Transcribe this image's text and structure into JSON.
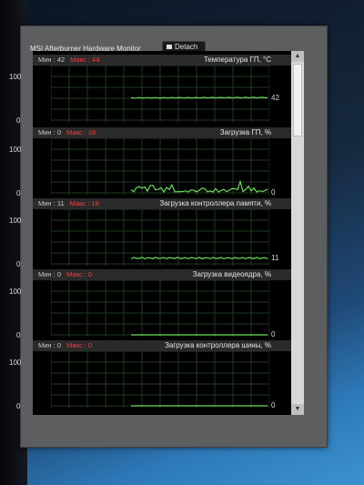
{
  "window": {
    "title": "MSI Afterburner Hardware Monitor",
    "detach_label": "Detach"
  },
  "graphs": [
    {
      "title": "Температура ГП, °C",
      "min_label": "Мин : 42",
      "max_label": "Макс : 44",
      "axis_max": "100",
      "axis_min": "0",
      "current": "42",
      "level": 0.42,
      "pattern": "flat"
    },
    {
      "title": "Загрузка ГП, %",
      "min_label": "Мин : 0",
      "max_label": "Макс : 18",
      "axis_max": "100",
      "axis_min": "0",
      "current": "0",
      "level": 0.0,
      "pattern": "spiky"
    },
    {
      "title": "Загрузка контроллера памяти, %",
      "min_label": "Мин : 11",
      "max_label": "Макс : 18",
      "axis_max": "100",
      "axis_min": "0",
      "current": "11",
      "level": 0.11,
      "pattern": "slight"
    },
    {
      "title": "Загрузка видеоядра, %",
      "min_label": "Мин : 0",
      "max_label": "Макс : 0",
      "axis_max": "100",
      "axis_min": "0",
      "current": "0",
      "level": 0.0,
      "pattern": "flat"
    },
    {
      "title": "Загрузка контроллера шины, %",
      "min_label": "Мин : 0",
      "max_label": "Макс : 0",
      "axis_max": "100",
      "axis_min": "0",
      "current": "0",
      "level": 0.0,
      "pattern": "flat"
    }
  ],
  "colors": {
    "line": "#6ee05a",
    "grid": "#1f3a1f",
    "max": "#ff3b3b"
  }
}
